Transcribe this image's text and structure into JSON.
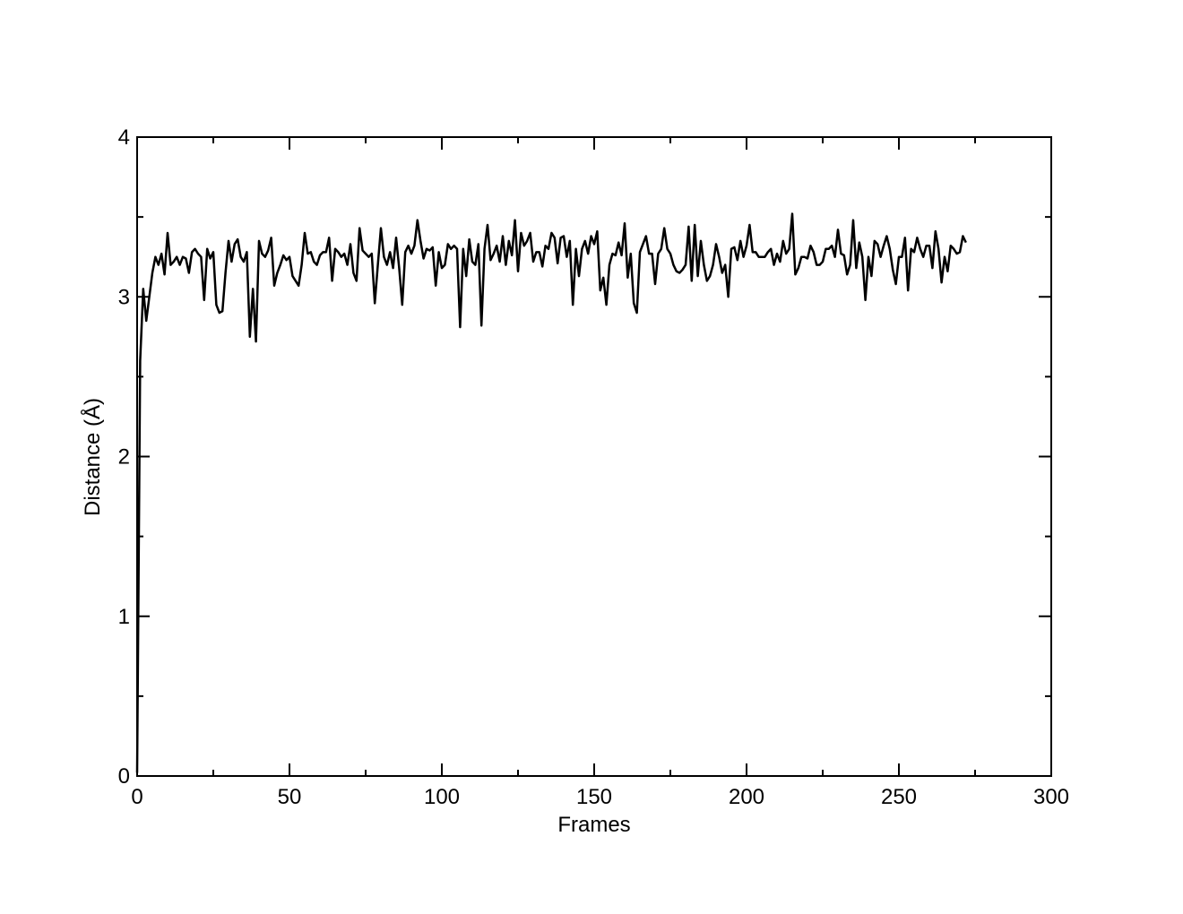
{
  "chart_data": {
    "type": "line",
    "xlabel": "Frames",
    "ylabel": "Distance (Å)",
    "x": [
      0,
      1,
      2,
      3,
      4,
      5,
      6,
      7,
      8,
      9,
      10,
      11,
      12,
      13,
      14,
      15,
      16,
      17,
      18,
      19,
      20,
      21,
      22,
      23,
      24,
      25,
      26,
      27,
      28,
      29,
      30,
      31,
      32,
      33,
      34,
      35,
      36,
      37,
      38,
      39,
      40,
      41,
      42,
      43,
      44,
      45,
      46,
      47,
      48,
      49,
      50,
      51,
      52,
      53,
      54,
      55,
      56,
      57,
      58,
      59,
      60,
      61,
      62,
      63,
      64,
      65,
      66,
      67,
      68,
      69,
      70,
      71,
      72,
      73,
      74,
      75,
      76,
      77,
      78,
      79,
      80,
      81,
      82,
      83,
      84,
      85,
      86,
      87,
      88,
      89,
      90,
      91,
      92,
      93,
      94,
      95,
      96,
      97,
      98,
      99,
      100,
      101,
      102,
      103,
      104,
      105,
      106,
      107,
      108,
      109,
      110,
      111,
      112,
      113,
      114,
      115,
      116,
      117,
      118,
      119,
      120,
      121,
      122,
      123,
      124,
      125,
      126,
      127,
      128,
      129,
      130,
      131,
      132,
      133,
      134,
      135,
      136,
      137,
      138,
      139,
      140,
      141,
      142,
      143,
      144,
      145,
      146,
      147,
      148,
      149,
      150,
      151,
      152,
      153,
      154,
      155,
      156,
      157,
      158,
      159,
      160,
      161,
      162,
      163,
      164,
      165,
      166,
      167,
      168,
      169,
      170,
      171,
      172,
      173,
      174,
      175,
      176,
      177,
      178,
      179,
      180,
      181,
      182,
      183,
      184,
      185,
      186,
      187,
      188,
      189,
      190,
      191,
      192,
      193,
      194,
      195,
      196,
      197,
      198,
      199,
      200,
      201,
      202,
      203,
      204,
      205,
      206,
      207,
      208,
      209,
      210,
      211,
      212,
      213,
      214,
      215,
      216,
      217,
      218,
      219,
      220,
      221,
      222,
      223,
      224,
      225,
      226,
      227,
      228,
      229,
      230,
      231,
      232,
      233,
      234,
      235,
      236,
      237,
      238,
      239,
      240,
      241,
      242,
      243,
      244,
      245,
      246,
      247,
      248,
      249,
      250,
      251,
      252,
      253,
      254,
      255,
      256,
      257,
      258,
      259,
      260,
      261,
      262,
      263,
      264,
      265,
      266,
      267,
      268,
      269,
      270,
      271,
      272
    ],
    "series": [
      {
        "name": "distance",
        "color": "#000000",
        "values": [
          0.02,
          2.6,
          3.05,
          2.85,
          3.0,
          3.15,
          3.25,
          3.2,
          3.27,
          3.14,
          3.4,
          3.2,
          3.22,
          3.25,
          3.2,
          3.25,
          3.24,
          3.15,
          3.28,
          3.3,
          3.27,
          3.25,
          2.98,
          3.3,
          3.24,
          3.28,
          2.95,
          2.9,
          2.91,
          3.15,
          3.35,
          3.22,
          3.33,
          3.36,
          3.25,
          3.22,
          3.28,
          2.75,
          3.05,
          2.72,
          3.35,
          3.27,
          3.25,
          3.29,
          3.37,
          3.07,
          3.15,
          3.2,
          3.26,
          3.23,
          3.25,
          3.13,
          3.1,
          3.07,
          3.2,
          3.4,
          3.27,
          3.28,
          3.22,
          3.2,
          3.26,
          3.28,
          3.28,
          3.37,
          3.1,
          3.3,
          3.28,
          3.25,
          3.27,
          3.2,
          3.33,
          3.15,
          3.1,
          3.43,
          3.29,
          3.27,
          3.25,
          3.27,
          2.96,
          3.2,
          3.43,
          3.25,
          3.2,
          3.28,
          3.18,
          3.37,
          3.18,
          2.95,
          3.28,
          3.32,
          3.27,
          3.32,
          3.48,
          3.35,
          3.24,
          3.3,
          3.29,
          3.31,
          3.07,
          3.28,
          3.18,
          3.2,
          3.33,
          3.3,
          3.32,
          3.3,
          2.81,
          3.3,
          3.13,
          3.36,
          3.22,
          3.2,
          3.33,
          2.82,
          3.3,
          3.45,
          3.23,
          3.27,
          3.32,
          3.22,
          3.38,
          3.2,
          3.35,
          3.26,
          3.48,
          3.16,
          3.4,
          3.32,
          3.35,
          3.4,
          3.22,
          3.28,
          3.28,
          3.19,
          3.32,
          3.3,
          3.4,
          3.37,
          3.21,
          3.37,
          3.38,
          3.25,
          3.35,
          2.95,
          3.3,
          3.13,
          3.3,
          3.35,
          3.27,
          3.38,
          3.33,
          3.41,
          3.04,
          3.12,
          2.95,
          3.2,
          3.27,
          3.26,
          3.34,
          3.26,
          3.46,
          3.12,
          3.27,
          2.96,
          2.9,
          3.28,
          3.33,
          3.38,
          3.27,
          3.27,
          3.08,
          3.27,
          3.3,
          3.43,
          3.3,
          3.27,
          3.2,
          3.16,
          3.15,
          3.17,
          3.2,
          3.44,
          3.1,
          3.45,
          3.13,
          3.35,
          3.2,
          3.1,
          3.13,
          3.2,
          3.33,
          3.25,
          3.15,
          3.2,
          3.0,
          3.3,
          3.31,
          3.23,
          3.35,
          3.25,
          3.32,
          3.45,
          3.28,
          3.28,
          3.25,
          3.25,
          3.25,
          3.28,
          3.3,
          3.2,
          3.27,
          3.22,
          3.35,
          3.27,
          3.3,
          3.52,
          3.14,
          3.18,
          3.25,
          3.25,
          3.24,
          3.32,
          3.28,
          3.2,
          3.2,
          3.22,
          3.3,
          3.3,
          3.32,
          3.25,
          3.42,
          3.27,
          3.26,
          3.14,
          3.2,
          3.48,
          3.18,
          3.34,
          3.25,
          2.98,
          3.25,
          3.13,
          3.35,
          3.33,
          3.25,
          3.32,
          3.38,
          3.3,
          3.17,
          3.08,
          3.25,
          3.25,
          3.37,
          3.04,
          3.3,
          3.28,
          3.37,
          3.3,
          3.25,
          3.32,
          3.32,
          3.18,
          3.41,
          3.3,
          3.09,
          3.25,
          3.16,
          3.32,
          3.3,
          3.27,
          3.28,
          3.38,
          3.34
        ]
      }
    ],
    "xlim": [
      0,
      300
    ],
    "xticks": [
      0,
      50,
      100,
      150,
      200,
      250,
      300
    ],
    "xminorticks": [
      25,
      75,
      125,
      175,
      225,
      275
    ],
    "ylim": [
      0,
      4
    ],
    "yticks": [
      0,
      1,
      2,
      3,
      4
    ],
    "yminorticks": [
      0.5,
      1.5,
      2.5,
      3.5
    ],
    "grid": false,
    "mirror_ticks": true
  }
}
